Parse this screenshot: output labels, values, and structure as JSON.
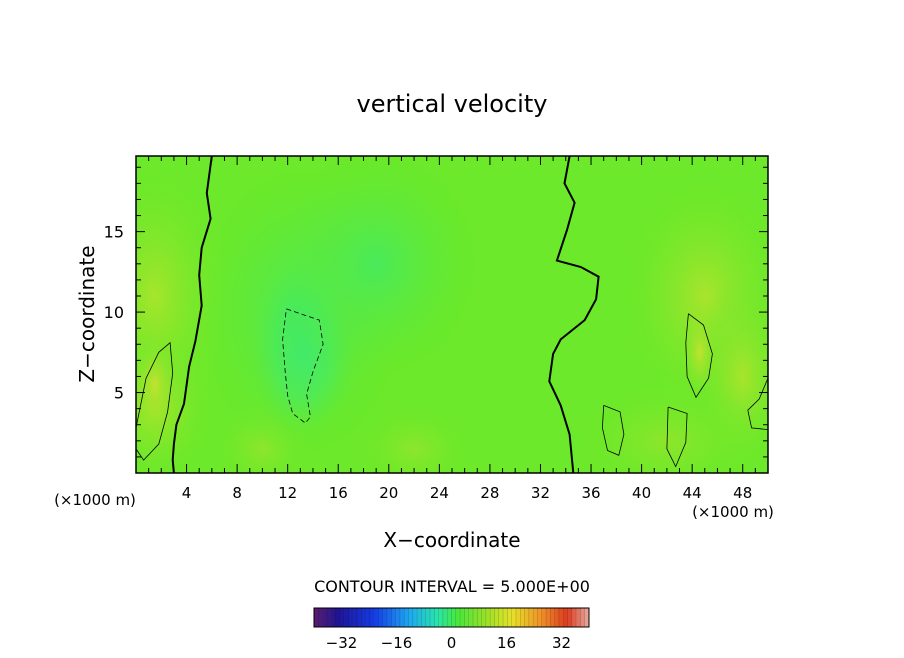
{
  "chart_data": {
    "type": "heatmap",
    "title": "vertical velocity",
    "xlabel": "X−coordinate",
    "ylabel": "Z−coordinate",
    "x_unit_label": "(×1000 m)",
    "x_unit_label_right": "(×1000 m)",
    "xlim": [
      0,
      50
    ],
    "ylim": [
      0,
      19.7
    ],
    "x_ticks": [
      "4",
      "8",
      "12",
      "16",
      "20",
      "24",
      "28",
      "32",
      "36",
      "40",
      "44",
      "48"
    ],
    "y_ticks": [
      "5",
      "10",
      "15"
    ],
    "contour_interval_text": "CONTOUR INTERVAL = 5.000E+00",
    "colorbar": {
      "range": [
        -40,
        40
      ],
      "ticks": [
        "−32",
        "−16",
        "0",
        "16",
        "32"
      ]
    },
    "zero_contours": [
      [
        [
          6.0,
          19.7
        ],
        [
          5.6,
          17.4
        ],
        [
          5.9,
          15.8
        ],
        [
          5.2,
          14.0
        ],
        [
          5.0,
          12.3
        ],
        [
          5.2,
          10.4
        ],
        [
          4.7,
          8.2
        ],
        [
          4.2,
          6.6
        ],
        [
          3.8,
          4.3
        ],
        [
          3.2,
          3.0
        ],
        [
          3.0,
          1.8
        ],
        [
          2.9,
          0.8
        ],
        [
          3.0,
          0
        ]
      ],
      [
        [
          34.3,
          19.7
        ],
        [
          33.9,
          18.0
        ],
        [
          34.7,
          16.8
        ],
        [
          34.1,
          15.1
        ],
        [
          33.3,
          13.2
        ],
        [
          35.2,
          12.8
        ],
        [
          36.6,
          12.2
        ],
        [
          36.4,
          10.8
        ],
        [
          35.5,
          9.5
        ],
        [
          33.6,
          8.3
        ],
        [
          33.0,
          7.4
        ],
        [
          32.7,
          5.7
        ],
        [
          33.6,
          4.2
        ],
        [
          34.3,
          2.4
        ],
        [
          34.6,
          0
        ]
      ]
    ],
    "negative_contours": [
      [
        [
          11.9,
          10.2
        ],
        [
          13.0,
          9.9
        ],
        [
          14.5,
          9.5
        ],
        [
          14.8,
          8.0
        ],
        [
          14.0,
          6.3
        ],
        [
          13.5,
          4.9
        ],
        [
          13.8,
          3.5
        ],
        [
          13.4,
          3.1
        ],
        [
          12.4,
          3.7
        ],
        [
          12.0,
          4.8
        ],
        [
          11.8,
          6.3
        ],
        [
          11.6,
          8.3
        ],
        [
          11.9,
          10.2
        ]
      ]
    ],
    "positive_contours": [
      [
        [
          0,
          2.8
        ],
        [
          0.8,
          5.9
        ],
        [
          1.8,
          7.5
        ],
        [
          2.7,
          8.1
        ],
        [
          2.9,
          6.2
        ],
        [
          2.5,
          3.8
        ],
        [
          1.8,
          1.8
        ],
        [
          0.6,
          0.8
        ],
        [
          0,
          1.5
        ]
      ],
      [
        [
          43.7,
          9.9
        ],
        [
          44.9,
          9.2
        ],
        [
          45.6,
          7.4
        ],
        [
          45.3,
          5.9
        ],
        [
          44.3,
          4.7
        ],
        [
          43.6,
          6.0
        ],
        [
          43.5,
          8.1
        ],
        [
          43.7,
          9.9
        ]
      ],
      [
        [
          37.0,
          4.2
        ],
        [
          38.3,
          3.8
        ],
        [
          38.6,
          2.4
        ],
        [
          38.2,
          1.1
        ],
        [
          37.3,
          1.4
        ],
        [
          36.9,
          2.8
        ],
        [
          37.0,
          4.2
        ]
      ],
      [
        [
          42.1,
          4.1
        ],
        [
          43.6,
          3.7
        ],
        [
          43.5,
          1.9
        ],
        [
          42.7,
          0.4
        ],
        [
          42.0,
          1.5
        ],
        [
          42.1,
          4.1
        ]
      ],
      [
        [
          48.4,
          3.9
        ],
        [
          49.3,
          4.6
        ],
        [
          50,
          5.9
        ],
        [
          50,
          2.7
        ],
        [
          48.7,
          2.8
        ],
        [
          48.4,
          3.9
        ]
      ]
    ]
  }
}
